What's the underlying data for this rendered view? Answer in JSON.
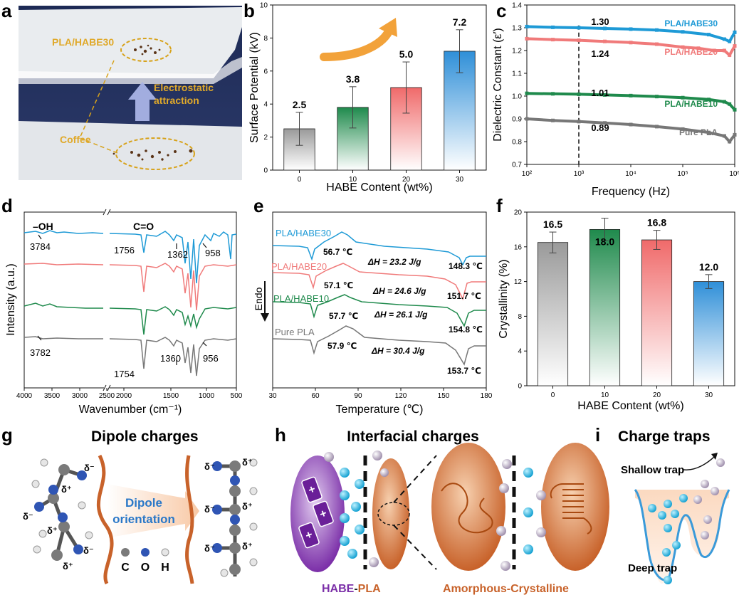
{
  "panels": {
    "a": {
      "letter": "a",
      "sample_label": "PLA/HABE30",
      "coffee_label": "Coffee",
      "arrow_label_1": "Electrostatic",
      "arrow_label_2": "attraction"
    },
    "b": {
      "letter": "b"
    },
    "c": {
      "letter": "c"
    },
    "d": {
      "letter": "d"
    },
    "e": {
      "letter": "e"
    },
    "f": {
      "letter": "f"
    },
    "g": {
      "letter": "g",
      "title": "Dipole charges",
      "center_label_1": "Dipole",
      "center_label_2": "orientation",
      "delta_minus": "δ⁻",
      "delta_plus": "δ⁺",
      "legend": [
        {
          "label": "C",
          "color": "#7a7a7a"
        },
        {
          "label": "O",
          "color": "#2f55b4"
        },
        {
          "label": "H",
          "color": "#e6e6e6"
        }
      ]
    },
    "h": {
      "letter": "h",
      "title": "Interfacial charges",
      "habe": "HABE",
      "dash": "-",
      "pla": "PLA",
      "amorphous": "Amorphous",
      "crystalline": "Crystalline",
      "colors": {
        "habe": "#7b2fa8",
        "pla": "#c8622a",
        "amorphous": "#c8622a",
        "crystalline": "#c8622a"
      }
    },
    "i": {
      "letter": "i",
      "title": "Charge traps",
      "shallow": "Shallow trap",
      "deep": "Deep trap"
    }
  },
  "chart_data": [
    {
      "id": "b",
      "type": "bar",
      "categories": [
        "0",
        "10",
        "20",
        "30"
      ],
      "values": [
        2.5,
        3.8,
        5.0,
        7.2
      ],
      "errors": [
        1.0,
        1.25,
        1.55,
        1.3
      ],
      "value_labels": [
        "2.5",
        "3.8",
        "5.0",
        "7.2"
      ],
      "xlabel": "HABE Content (wt%)",
      "ylabel": "Surface Potential (kV)",
      "ylim": [
        0,
        10
      ],
      "yticks": [
        "0",
        "2",
        "4",
        "6",
        "8",
        "10"
      ],
      "colors": [
        "#9a9a9a",
        "#1f8a4c",
        "#f06a6a",
        "#2f8fd8"
      ]
    },
    {
      "id": "c",
      "type": "line",
      "xlabel": "Frequency (Hz)",
      "ylabel": "Dielectric Constant (ε′)",
      "xlim": [
        2,
        6
      ],
      "ylim": [
        0.7,
        1.4
      ],
      "xticks": [
        "10²",
        "10³",
        "10⁴",
        "10⁵",
        "10⁶"
      ],
      "yticks": [
        "0.7",
        "0.8",
        "0.9",
        "1.0",
        "1.1",
        "1.2",
        "1.3",
        "1.4"
      ],
      "marker_x": 3,
      "series": [
        {
          "name": "PLA/HABE30",
          "color": "#1e9ad6",
          "value_label": "1.30",
          "x": [
            2,
            2.5,
            3,
            3.5,
            4,
            4.5,
            5,
            5.5,
            5.8,
            5.9,
            6
          ],
          "y": [
            1.305,
            1.302,
            1.3,
            1.297,
            1.294,
            1.29,
            1.282,
            1.27,
            1.25,
            1.24,
            1.28
          ]
        },
        {
          "name": "PLA/HABE20",
          "color": "#f07a7a",
          "value_label": "1.24",
          "x": [
            2,
            2.5,
            3,
            3.5,
            4,
            4.5,
            5,
            5.3,
            5.6,
            5.8,
            5.9,
            6
          ],
          "y": [
            1.252,
            1.248,
            1.245,
            1.24,
            1.235,
            1.228,
            1.215,
            1.21,
            1.2,
            1.2,
            1.18,
            1.22
          ]
        },
        {
          "name": "PLA/HABE10",
          "color": "#1f8a4c",
          "value_label": "1.01",
          "x": [
            2,
            2.5,
            3,
            3.5,
            4,
            4.5,
            5,
            5.5,
            5.8,
            5.9,
            6
          ],
          "y": [
            1.012,
            1.01,
            1.008,
            1.005,
            1.002,
            0.998,
            0.993,
            0.985,
            0.975,
            0.965,
            0.94
          ]
        },
        {
          "name": "Pure PLA",
          "color": "#777777",
          "value_label": "0.89",
          "x": [
            2,
            2.5,
            3,
            3.5,
            4,
            4.5,
            5,
            5.5,
            5.8,
            5.9,
            6
          ],
          "y": [
            0.9,
            0.893,
            0.888,
            0.882,
            0.875,
            0.866,
            0.855,
            0.84,
            0.825,
            0.8,
            0.83
          ]
        }
      ]
    },
    {
      "id": "d",
      "type": "line",
      "xlabel": "Wavenumber (cm⁻¹)",
      "ylabel": "Intensity (a.u.)",
      "xticks": [
        "4000",
        "3500",
        "3000",
        "2500",
        "2000",
        "1500",
        "1000",
        "500"
      ],
      "annotations": [
        "–OH",
        "C=O",
        "3784",
        "1756",
        "1362",
        "958",
        "3782",
        "1754",
        "1360",
        "956"
      ],
      "series": [
        {
          "name": "PLA/HABE30",
          "color": "#1e9ad6"
        },
        {
          "name": "PLA/HABE20",
          "color": "#f07a7a"
        },
        {
          "name": "PLA/HABE10",
          "color": "#1f8a4c"
        },
        {
          "name": "Pure PLA",
          "color": "#777777"
        }
      ]
    },
    {
      "id": "e",
      "type": "line",
      "xlabel": "Temperature (℃)",
      "ylabel": "Endo",
      "xlim": [
        30,
        180
      ],
      "xticks": [
        "30",
        "60",
        "90",
        "120",
        "150",
        "180"
      ],
      "series": [
        {
          "name": "PLA/HABE30",
          "color": "#1e9ad6",
          "tg": "56.7 ℃",
          "dh": "ΔH = 23.2 J/g",
          "tm": "148.3 ℃"
        },
        {
          "name": "PLA/HABE20",
          "color": "#f07a7a",
          "tg": "57.1 ℃",
          "dh": "ΔH = 24.6 J/g",
          "tm": "151.7 ℃"
        },
        {
          "name": "PLA/HABE10",
          "color": "#1f8a4c",
          "tg": "57.7 ℃",
          "dh": "ΔH = 26.1 J/g",
          "tm": "154.8 ℃"
        },
        {
          "name": "Pure PLA",
          "color": "#777777",
          "tg": "57.9 ℃",
          "dh": "ΔH = 30.4 J/g",
          "tm": "153.7 ℃"
        }
      ]
    },
    {
      "id": "f",
      "type": "bar",
      "categories": [
        "0",
        "10",
        "20",
        "30"
      ],
      "values": [
        16.5,
        18.0,
        16.8,
        12.0
      ],
      "errors": [
        1.2,
        1.3,
        1.1,
        0.8
      ],
      "value_labels": [
        "16.5",
        "18.0",
        "16.8",
        "12.0"
      ],
      "xlabel": "HABE Content (wt%)",
      "ylabel": "Crystallinity (%)",
      "ylim": [
        0,
        20
      ],
      "yticks": [
        "0",
        "4",
        "8",
        "12",
        "16",
        "20"
      ],
      "colors": [
        "#9a9a9a",
        "#1f8a4c",
        "#f06a6a",
        "#2f8fd8"
      ]
    }
  ]
}
